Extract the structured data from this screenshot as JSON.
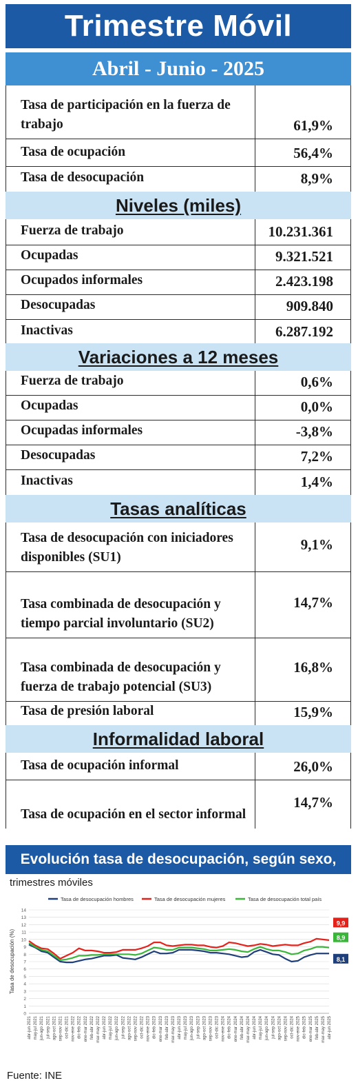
{
  "header": {
    "title": "Trimestre Móvil",
    "period": "Abril - Junio - 2025"
  },
  "rates": [
    {
      "label": "Tasa de participación en la fuerza de trabajo",
      "value": "61,9%"
    },
    {
      "label": "Tasa de ocupación",
      "value": "56,4%"
    },
    {
      "label": "Tasa de desocupación",
      "value": "8,9%"
    }
  ],
  "levels": {
    "title": "Niveles  (miles)",
    "rows": [
      {
        "label": "Fuerza de trabajo",
        "value": "10.231.361"
      },
      {
        "label": "Ocupadas",
        "value": "9.321.521"
      },
      {
        "label": "Ocupados informales",
        "value": "2.423.198"
      },
      {
        "label": "Desocupadas",
        "value": "909.840"
      },
      {
        "label": "Inactivas",
        "value": "6.287.192"
      }
    ]
  },
  "variations": {
    "title": "Variaciones a 12 meses",
    "rows": [
      {
        "label": "Fuerza de trabajo",
        "value": "0,6%"
      },
      {
        "label": "Ocupadas",
        "value": "0,0%"
      },
      {
        "label": "Ocupadas informales",
        "value": "-3,8%"
      },
      {
        "label": "Desocupadas",
        "value": "7,2%"
      },
      {
        "label": "Inactivas",
        "value": "1,4%"
      }
    ]
  },
  "analytic": {
    "title": "Tasas  analíticas",
    "rows": [
      {
        "label": "Tasa de desocupación con iniciadores disponibles (SU1)",
        "value": "9,1%"
      },
      {
        "label": "Tasa combinada de desocupación y tiempo parcial involuntario (SU2)",
        "value": "14,7%"
      },
      {
        "label": "Tasa combinada de desocupación y fuerza de trabajo potencial (SU3)",
        "value": "16,8%"
      },
      {
        "label": "Tasa de presión laboral",
        "value": "15,9%"
      }
    ]
  },
  "informality": {
    "title": "Informalidad  laboral",
    "rows": [
      {
        "label": "Tasa de ocupación informal",
        "value": "26,0%"
      },
      {
        "label": "Tasa de ocupación en el sector informal",
        "value": "14,7%"
      }
    ]
  },
  "chart_header": {
    "title": "Evolución tasa de desocupación, según sexo, total país",
    "subtitle": "trimestres móviles"
  },
  "chart_data": {
    "type": "line",
    "ylabel": "Tasa de desocupación (%)",
    "ylim": [
      0,
      14
    ],
    "yticks": [
      "0",
      "1",
      "2",
      "3",
      "4",
      "5",
      "6",
      "7",
      "8",
      "9",
      "10",
      "11",
      "12",
      "13",
      "14"
    ],
    "grid": true,
    "legend_position": "top",
    "x": [
      "abr-jun 2021",
      "may-jul 2021",
      "jun-ago 2021",
      "jul-sep 2021",
      "ago-oct 2021",
      "sep-nov 2021",
      "oct-dic 2021",
      "nov-ene 2022",
      "dic-feb 2022",
      "ene-mar 2022",
      "feb-abr 2022",
      "mar-may 2022",
      "abr-jun 2022",
      "may-jul 2022",
      "jun-ago 2022",
      "jul-sep 2022",
      "ago-oct 2022",
      "sep-nov 2022",
      "oct-dic 2022",
      "nov-ene 2023",
      "dic-feb 2023",
      "ene-mar 2023",
      "feb-abr 2023",
      "mar-may 2023",
      "abr-jun 2023",
      "may-jul 2023",
      "jun-ago 2023",
      "jul-sep 2023",
      "ago-oct 2023",
      "sep-nov 2023",
      "oct-dic 2023",
      "nov-ene 2024",
      "dic-feb 2024",
      "ene-mar 2024",
      "feb-abr 2024",
      "mar-may 2024",
      "abr-jun 2024",
      "may-jul 2024",
      "jun-ago 2024",
      "jul-sep 2024",
      "ago-oct 2024",
      "sep-nov 2024",
      "oct-dic 2024",
      "nov-ene 2025",
      "dic-feb 2025",
      "ene-mar 2025",
      "feb-abr 2025",
      "mar-may 2025",
      "abr-jun 2025"
    ],
    "series": [
      {
        "name": "Tasa de desocupación hombres",
        "color": "#1f3f7a",
        "values": [
          9.3,
          8.9,
          8.4,
          8.2,
          7.6,
          7.0,
          6.9,
          6.9,
          7.1,
          7.3,
          7.4,
          7.6,
          7.8,
          7.8,
          7.9,
          7.5,
          7.4,
          7.3,
          7.6,
          8.0,
          8.4,
          8.1,
          8.1,
          8.2,
          8.6,
          8.6,
          8.6,
          8.5,
          8.4,
          8.2,
          8.2,
          8.1,
          8.0,
          7.8,
          7.6,
          7.7,
          8.3,
          8.6,
          8.3,
          8.0,
          7.9,
          7.4,
          7.0,
          7.1,
          7.6,
          7.9,
          8.1,
          8.1,
          8.1
        ]
      },
      {
        "name": "Tasa de desocupación mujeres",
        "color": "#e3231b",
        "values": [
          9.8,
          9.2,
          8.8,
          8.7,
          8.1,
          7.4,
          7.8,
          8.2,
          8.8,
          8.5,
          8.5,
          8.4,
          8.2,
          8.2,
          8.3,
          8.6,
          8.6,
          8.6,
          8.8,
          9.1,
          9.6,
          9.6,
          9.2,
          9.1,
          9.2,
          9.3,
          9.3,
          9.2,
          9.2,
          9.0,
          8.9,
          9.1,
          9.6,
          9.5,
          9.3,
          9.1,
          9.2,
          9.4,
          9.3,
          9.1,
          9.2,
          9.3,
          9.2,
          9.2,
          9.5,
          9.7,
          10.1,
          10.0,
          9.9
        ]
      },
      {
        "name": "Tasa de desocupación total país",
        "color": "#3ab53a",
        "values": [
          9.5,
          9.0,
          8.6,
          8.4,
          7.8,
          7.2,
          7.3,
          7.5,
          7.8,
          7.8,
          7.9,
          7.9,
          8.0,
          8.0,
          8.0,
          8.0,
          8.0,
          7.9,
          8.1,
          8.5,
          8.9,
          8.8,
          8.6,
          8.6,
          8.9,
          8.9,
          8.9,
          8.8,
          8.7,
          8.5,
          8.5,
          8.6,
          8.7,
          8.6,
          8.4,
          8.3,
          8.7,
          9.0,
          8.7,
          8.5,
          8.5,
          8.3,
          8.0,
          8.1,
          8.5,
          8.7,
          9.0,
          9.0,
          8.9
        ]
      }
    ],
    "end_labels": [
      "9,9",
      "8,9",
      "8,1"
    ]
  },
  "source": "Fuente: INE"
}
